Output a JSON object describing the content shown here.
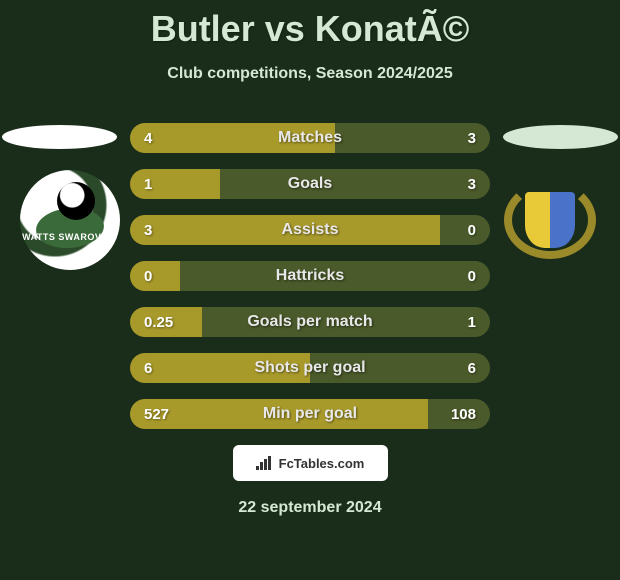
{
  "title": "Butler vs KonatÃ©",
  "subtitle": "Club competitions, Season 2024/2025",
  "date": "22 september 2024",
  "branding_text": "FcTables.com",
  "crest_left_text": "WATTS SWAROVSKI",
  "colors": {
    "background": "#1a2d1a",
    "bar_left": "#a89a2a",
    "bar_right": "#4a5a2a",
    "text_light": "#d4e8d4"
  },
  "bar_total_width": 360,
  "stats": [
    {
      "label": "Matches",
      "left_val": "4",
      "right_val": "3",
      "left_w": 205,
      "right_w": 155
    },
    {
      "label": "Goals",
      "left_val": "1",
      "right_val": "3",
      "left_w": 90,
      "right_w": 270
    },
    {
      "label": "Assists",
      "left_val": "3",
      "right_val": "0",
      "left_w": 310,
      "right_w": 50
    },
    {
      "label": "Hattricks",
      "left_val": "0",
      "right_val": "0",
      "left_w": 50,
      "right_w": 310
    },
    {
      "label": "Goals per match",
      "left_val": "0.25",
      "right_val": "1",
      "left_w": 72,
      "right_w": 288
    },
    {
      "label": "Shots per goal",
      "left_val": "6",
      "right_val": "6",
      "left_w": 180,
      "right_w": 180
    },
    {
      "label": "Min per goal",
      "left_val": "527",
      "right_val": "108",
      "left_w": 298,
      "right_w": 62
    }
  ]
}
